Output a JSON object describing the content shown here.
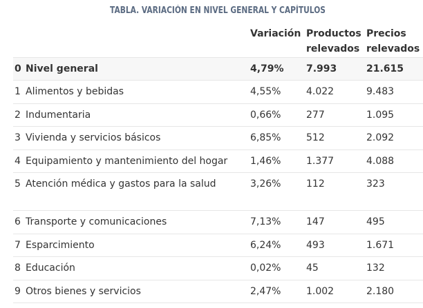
{
  "title": "TABLA. VARIACIÓN EN NIVEL GENERAL Y CAPÍTULOS",
  "columns": {
    "variation": "Variación",
    "products_line1": "Productos",
    "products_line2": "relevados",
    "prices_line1": "Precios",
    "prices_line2": "relevados"
  },
  "rows": [
    {
      "idx": "0",
      "name": "Nivel general",
      "variation": "4,79%",
      "products": "7.993",
      "prices": "21.615"
    },
    {
      "idx": "1",
      "name": "Alimentos y bebidas",
      "variation": "4,55%",
      "products": "4.022",
      "prices": "9.483"
    },
    {
      "idx": "2",
      "name": "Indumentaria",
      "variation": "0,66%",
      "products": "277",
      "prices": "1.095"
    },
    {
      "idx": "3",
      "name": "Vivienda y servicios básicos",
      "variation": "6,85%",
      "products": "512",
      "prices": "2.092"
    },
    {
      "idx": "4",
      "name": "Equipamiento y mantenimiento del hogar",
      "variation": "1,46%",
      "products": "1.377",
      "prices": "4.088"
    },
    {
      "idx": "5",
      "name": "Atención médica y gastos para la salud",
      "variation": "3,26%",
      "products": "112",
      "prices": "323"
    },
    {
      "idx": "6",
      "name": "Transporte y comunicaciones",
      "variation": "7,13%",
      "products": "147",
      "prices": "495"
    },
    {
      "idx": "7",
      "name": "Esparcimiento",
      "variation": "6,24%",
      "products": "493",
      "prices": "1.671"
    },
    {
      "idx": "8",
      "name": "Educación",
      "variation": "0,02%",
      "products": "45",
      "prices": "132"
    },
    {
      "idx": "9",
      "name": "Otros bienes y servicios",
      "variation": "2,47%",
      "products": "1.002",
      "prices": "2.180"
    }
  ]
}
